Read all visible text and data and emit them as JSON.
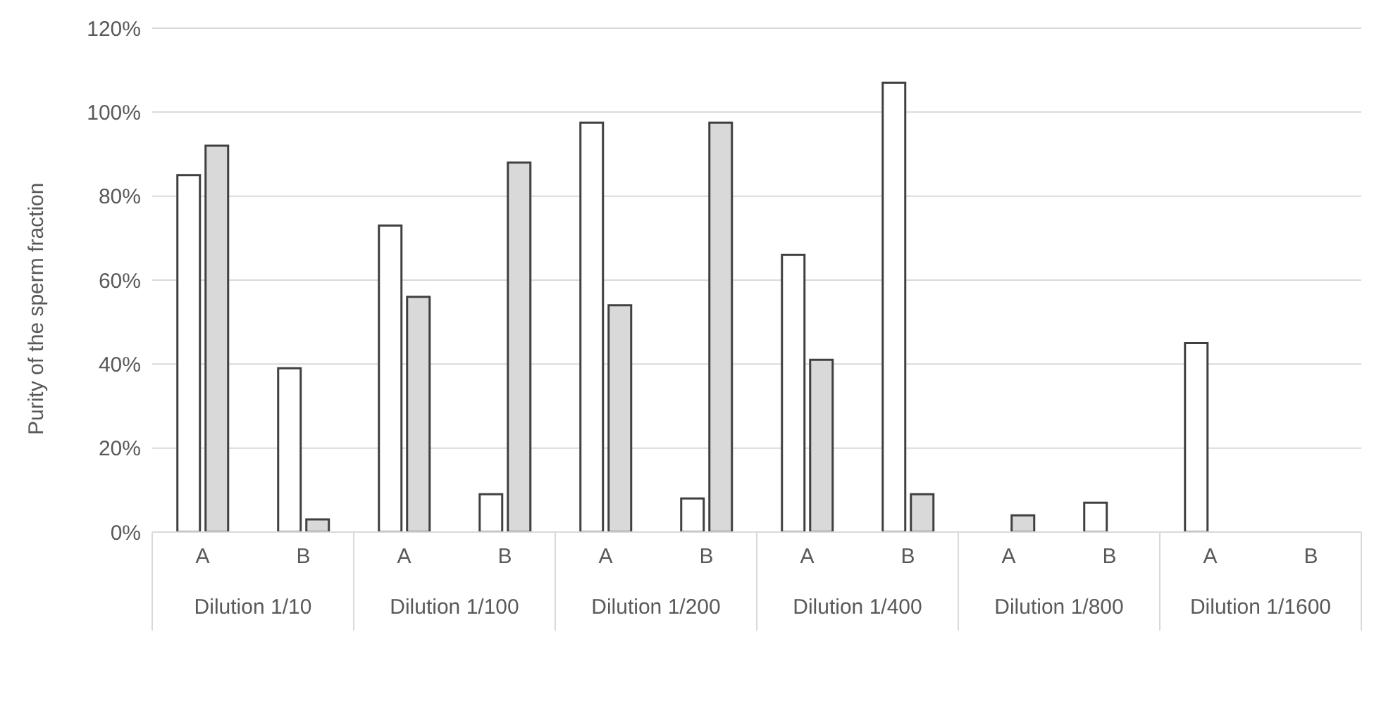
{
  "chart_data": {
    "type": "bar",
    "ylabel": "Purity of the sperm fraction",
    "categories": [
      "A",
      "B",
      "A",
      "B",
      "A",
      "B",
      "A",
      "B",
      "A",
      "B",
      "A",
      "B"
    ],
    "annotations": [
      "Dilution 1/10",
      "Dilution 1/100",
      "Dilution 1/200",
      "Dilution 1/400",
      "Dilution 1/800",
      "Dilution 1/1600"
    ],
    "series": [
      {
        "color": "#ffffff",
        "values": [
          85,
          39,
          73,
          9,
          97.5,
          8,
          66,
          107,
          0,
          7,
          45,
          0
        ]
      },
      {
        "color": "#d9d9d9",
        "values": [
          92,
          3,
          56,
          88,
          54,
          97.5,
          41,
          9,
          4,
          0,
          0,
          0
        ]
      }
    ],
    "ylim": [
      0,
      120
    ],
    "yticks": [
      {
        "value": 0,
        "label": "0%"
      },
      {
        "value": 20,
        "label": "20%"
      },
      {
        "value": 40,
        "label": "40%"
      },
      {
        "value": 60,
        "label": "60%"
      },
      {
        "value": 80,
        "label": "80%"
      },
      {
        "value": 100,
        "label": "100%"
      },
      {
        "value": 120,
        "label": "120%"
      }
    ],
    "grid": "y"
  }
}
